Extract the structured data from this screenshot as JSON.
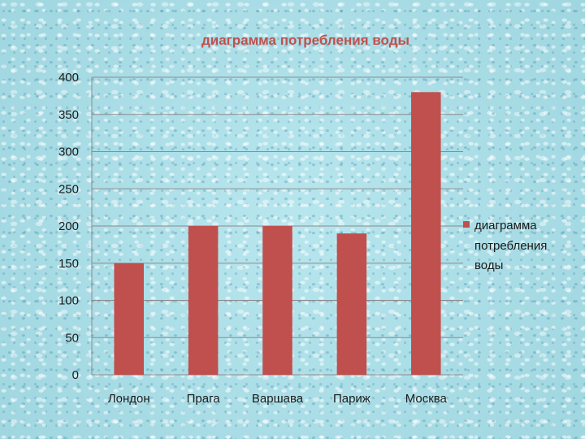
{
  "chart_data": {
    "type": "bar",
    "title": "диаграмма потребления воды",
    "categories": [
      "Лондон",
      "Прага",
      "Варшава",
      "Париж",
      "Москва"
    ],
    "series": [
      {
        "name": "диаграмма потребления воды",
        "values": [
          150,
          200,
          200,
          190,
          380
        ]
      }
    ],
    "ylim": [
      0,
      400
    ],
    "yticks": [
      "0",
      "50",
      "100",
      "150",
      "200",
      "250",
      "300",
      "350",
      "400"
    ],
    "grid": true,
    "legend": "right",
    "colors": {
      "bar": "#c0504d",
      "title": "#c0504d",
      "grid": "#8c8c8c"
    }
  },
  "legend": {
    "lines": [
      "диаграмма",
      "потребления",
      "воды"
    ]
  }
}
